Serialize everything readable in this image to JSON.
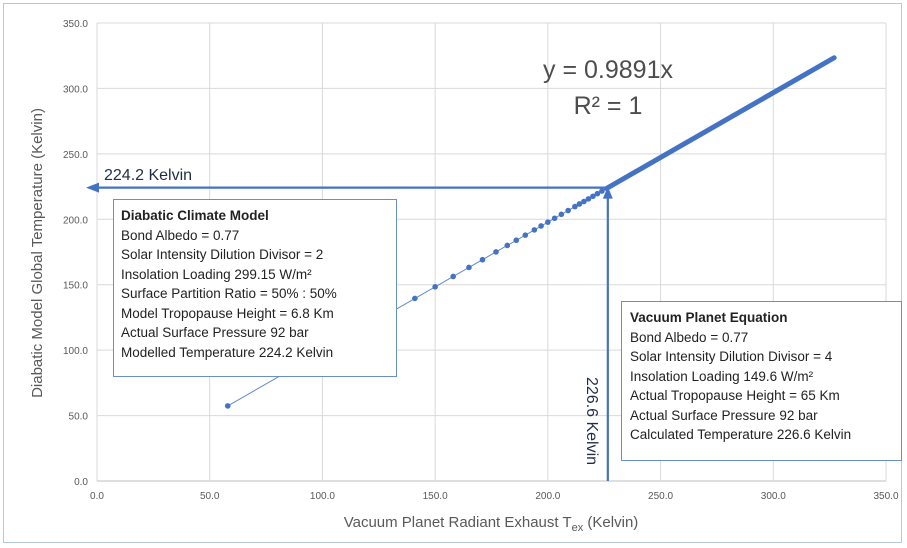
{
  "chart_data": {
    "type": "scatter",
    "xlabel": "Vacuum Planet Radiant Exhaust T",
    "xlabel_sub": "ex",
    "xlabel_unit": " (Kelvin)",
    "ylabel": "Diabatic Model Global Temperature (Kelvin)",
    "xlim": [
      0,
      350
    ],
    "ylim": [
      0,
      350
    ],
    "x_ticks": [
      "0.0",
      "50.0",
      "100.0",
      "150.0",
      "200.0",
      "250.0",
      "300.0",
      "350.0"
    ],
    "y_ticks": [
      "0.0",
      "50.0",
      "100.0",
      "150.0",
      "200.0",
      "250.0",
      "300.0",
      "350.0"
    ],
    "grid": true,
    "equation": "y = 0.9891x",
    "r_squared": "R² = 1",
    "slope": 0.9891,
    "x_start": 58,
    "x_end": 327,
    "series": [
      {
        "points": [
          [
            58,
            57.4
          ],
          [
            141,
            139.5
          ],
          [
            150,
            148.4
          ],
          [
            158,
            156.3
          ],
          [
            165,
            163.2
          ],
          [
            171,
            169.1
          ],
          [
            177,
            175.1
          ],
          [
            182,
            180.0
          ],
          [
            186,
            184.0
          ],
          [
            190,
            187.9
          ],
          [
            194,
            191.9
          ],
          [
            197,
            194.9
          ],
          [
            200,
            197.8
          ],
          [
            203,
            200.8
          ],
          [
            206,
            203.8
          ],
          [
            209,
            206.7
          ],
          [
            212,
            209.7
          ],
          [
            214,
            211.7
          ],
          [
            216,
            213.6
          ],
          [
            218,
            215.6
          ],
          [
            220,
            217.6
          ],
          [
            222,
            219.6
          ],
          [
            224,
            221.6
          ]
        ]
      }
    ],
    "annotations": {
      "horizontal_marker": "224.2 Kelvin",
      "vertical_marker": "226.6 Kelvin",
      "marker_x": 226.6,
      "marker_y": 224.2
    }
  },
  "diabatic_box": {
    "title": "Diabatic Climate Model",
    "lines": [
      "Bond Albedo = 0.77",
      "Solar Intensity Dilution Divisor = 2",
      "Insolation Loading 299.15 W/m²",
      "Surface Partition Ratio = 50% : 50%",
      "Model Tropopause Height = 6.8 Km",
      "Actual Surface Pressure 92 bar",
      "Modelled Temperature 224.2 Kelvin"
    ]
  },
  "vacuum_box": {
    "title": "Vacuum Planet Equation",
    "lines": [
      "Bond Albedo = 0.77",
      "Solar Intensity Dilution Divisor = 4",
      "Insolation Loading 149.6 W/m²",
      "Actual Tropopause Height = 65 Km",
      "Actual Surface Pressure 92 bar",
      "Calculated Temperature 226.6 Kelvin"
    ]
  },
  "colors": {
    "accent": "#4472c4",
    "grid": "#d9d9d9",
    "axis_text": "#595959",
    "equation_text": "#4d4d4d",
    "box_border": "#6a8fc7"
  }
}
